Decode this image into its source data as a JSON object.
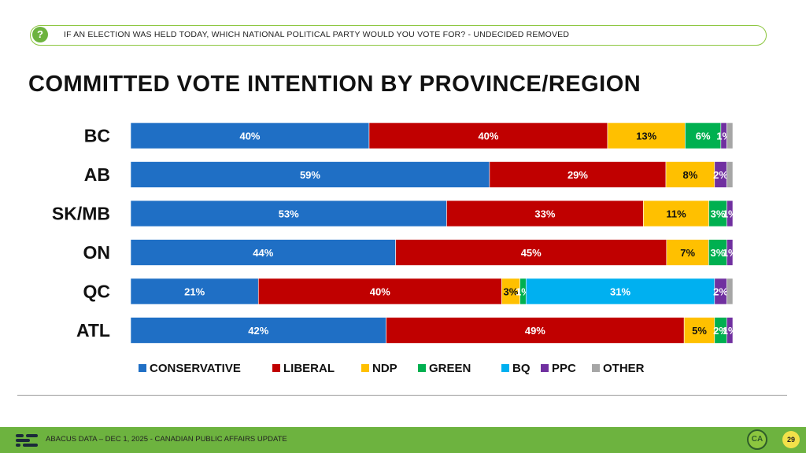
{
  "question": {
    "icon": "question-icon",
    "text": "IF AN ELECTION WAS HELD TODAY, WHICH NATIONAL POLITICAL PARTY WOULD YOU VOTE FOR?   - UNDECIDED REMOVED"
  },
  "title": "COMMITTED VOTE INTENTION BY PROVINCE/REGION",
  "chart_data": {
    "type": "bar",
    "orientation": "horizontal",
    "stacked": true,
    "categories": [
      "BC",
      "AB",
      "SK/MB",
      "ON",
      "QC",
      "ATL"
    ],
    "series": [
      {
        "name": "CONSERVATIVE",
        "color": "#1f6fc5",
        "values": [
          40,
          59,
          53,
          44,
          21,
          42
        ]
      },
      {
        "name": "LIBERAL",
        "color": "#c00000",
        "values": [
          40,
          29,
          33,
          45,
          40,
          49
        ]
      },
      {
        "name": "NDP",
        "color": "#ffc000",
        "values": [
          13,
          8,
          11,
          7,
          3,
          5
        ]
      },
      {
        "name": "GREEN",
        "color": "#00b050",
        "values": [
          6,
          0,
          3,
          3,
          1,
          2
        ]
      },
      {
        "name": "BQ",
        "color": "#00b0f0",
        "values": [
          0,
          0,
          0,
          0,
          31,
          0
        ]
      },
      {
        "name": "PPC",
        "color": "#7030a0",
        "values": [
          1,
          2,
          1,
          1,
          2,
          1
        ]
      },
      {
        "name": "OTHER",
        "color": "#a6a6a6",
        "values": [
          1,
          1,
          0,
          0,
          1,
          0
        ]
      }
    ],
    "data_labels": [
      [
        "40%",
        "40%",
        "13%",
        "6%",
        "",
        "1%",
        ""
      ],
      [
        "59%",
        "29%",
        "8%",
        "",
        "",
        "2%",
        ""
      ],
      [
        "53%",
        "33%",
        "11%",
        "3%",
        "",
        "1%",
        ""
      ],
      [
        "44%",
        "45%",
        "7%",
        "3%",
        "",
        "1%",
        ""
      ],
      [
        "21%",
        "40%",
        "3%",
        "1%",
        "31%",
        "2%",
        ""
      ],
      [
        "42%",
        "49%",
        "5%",
        "2%",
        "",
        "1%",
        ""
      ]
    ],
    "legend_position": "bottom",
    "grid": false
  },
  "footer": {
    "text": "ABACUS DATA  – DEC 1, 2025 - CANADIAN PUBLIC AFFAIRS UPDATE",
    "logo_icon": "abacus-logo-icon",
    "badge_text": "CA",
    "page_number": "29"
  }
}
